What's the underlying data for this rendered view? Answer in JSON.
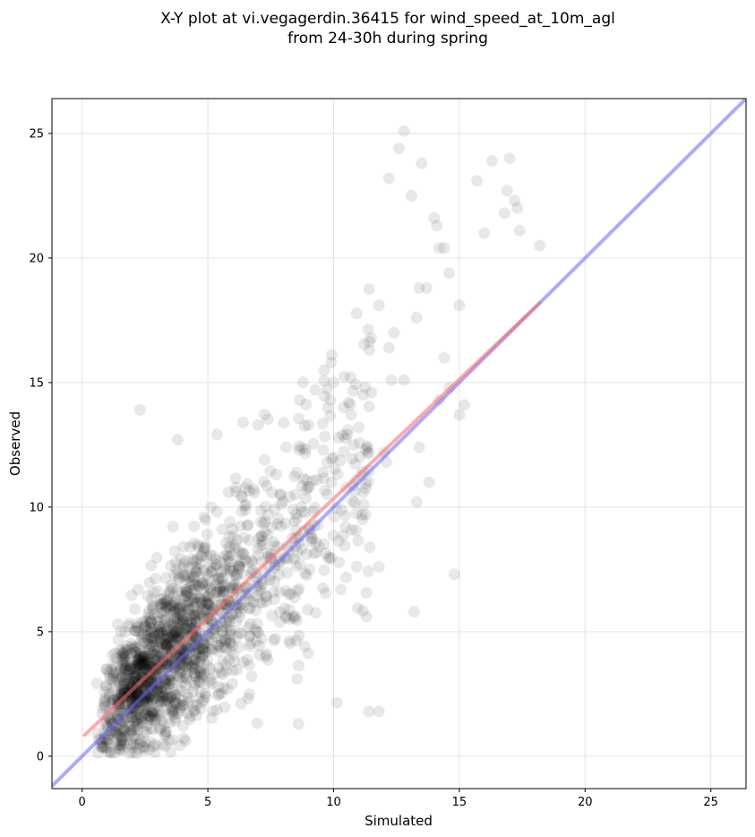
{
  "chart_data": {
    "type": "scatter",
    "title_lines": [
      "X-Y plot at vi.vegagerdin.36415 for wind_speed_at_10m_agl",
      "from 24-30h during spring"
    ],
    "xlabel": "Simulated",
    "ylabel": "Observed",
    "xlim": [
      -1.2,
      26.4
    ],
    "ylim": [
      -1.3,
      26.4
    ],
    "xticks": [
      0,
      5,
      10,
      15,
      20,
      25
    ],
    "yticks": [
      0,
      5,
      10,
      15,
      20,
      25
    ],
    "grid": true,
    "colors": {
      "points": "#000000",
      "identity_line": "#6666ff",
      "fit_line": "#ff6666"
    },
    "identity_line": {
      "from": [
        -1.2,
        -1.2
      ],
      "to": [
        26.4,
        26.4
      ]
    },
    "fit_line": {
      "from": [
        0.1,
        0.85
      ],
      "to": [
        18.2,
        18.2
      ]
    },
    "outlier_points": [
      [
        12.8,
        25.1
      ],
      [
        12.6,
        24.4
      ],
      [
        12.2,
        23.2
      ],
      [
        13.5,
        23.8
      ],
      [
        13.1,
        22.5
      ],
      [
        15.7,
        23.1
      ],
      [
        16.3,
        23.9
      ],
      [
        17.0,
        24.0
      ],
      [
        16.9,
        22.7
      ],
      [
        17.2,
        22.3
      ],
      [
        17.3,
        22.0
      ],
      [
        16.8,
        21.8
      ],
      [
        16.0,
        21.0
      ],
      [
        17.4,
        21.1
      ],
      [
        18.2,
        20.5
      ],
      [
        14.0,
        21.6
      ],
      [
        14.1,
        21.3
      ],
      [
        14.2,
        20.4
      ],
      [
        14.4,
        20.4
      ],
      [
        14.6,
        19.4
      ],
      [
        13.4,
        18.8
      ],
      [
        13.7,
        18.8
      ],
      [
        15.0,
        18.1
      ],
      [
        11.8,
        18.1
      ],
      [
        13.3,
        17.6
      ],
      [
        12.4,
        17.0
      ],
      [
        12.2,
        16.4
      ],
      [
        14.4,
        16.0
      ],
      [
        9.9,
        15.8
      ],
      [
        10.0,
        15.0
      ],
      [
        12.3,
        15.1
      ],
      [
        12.8,
        15.1
      ],
      [
        14.6,
        14.8
      ],
      [
        11.5,
        14.6
      ],
      [
        14.2,
        14.3
      ],
      [
        10.6,
        14.2
      ],
      [
        10.4,
        14.0
      ],
      [
        10.7,
        13.7
      ],
      [
        15.2,
        14.1
      ],
      [
        15.0,
        13.7
      ],
      [
        2.3,
        13.9
      ],
      [
        6.4,
        13.4
      ],
      [
        7.0,
        13.3
      ],
      [
        9.0,
        13.3
      ],
      [
        11.0,
        13.2
      ],
      [
        13.4,
        12.4
      ],
      [
        12.0,
        12.2
      ],
      [
        13.3,
        10.2
      ],
      [
        13.8,
        11.0
      ],
      [
        14.8,
        7.3
      ],
      [
        13.2,
        5.8
      ],
      [
        11.4,
        1.8
      ],
      [
        11.8,
        1.8
      ],
      [
        8.6,
        1.3
      ],
      [
        3.8,
        12.7
      ],
      [
        10.8,
        12.5
      ],
      [
        12.1,
        11.8
      ],
      [
        11.2,
        10.1
      ],
      [
        11.8,
        7.6
      ],
      [
        11.3,
        5.6
      ]
    ]
  }
}
